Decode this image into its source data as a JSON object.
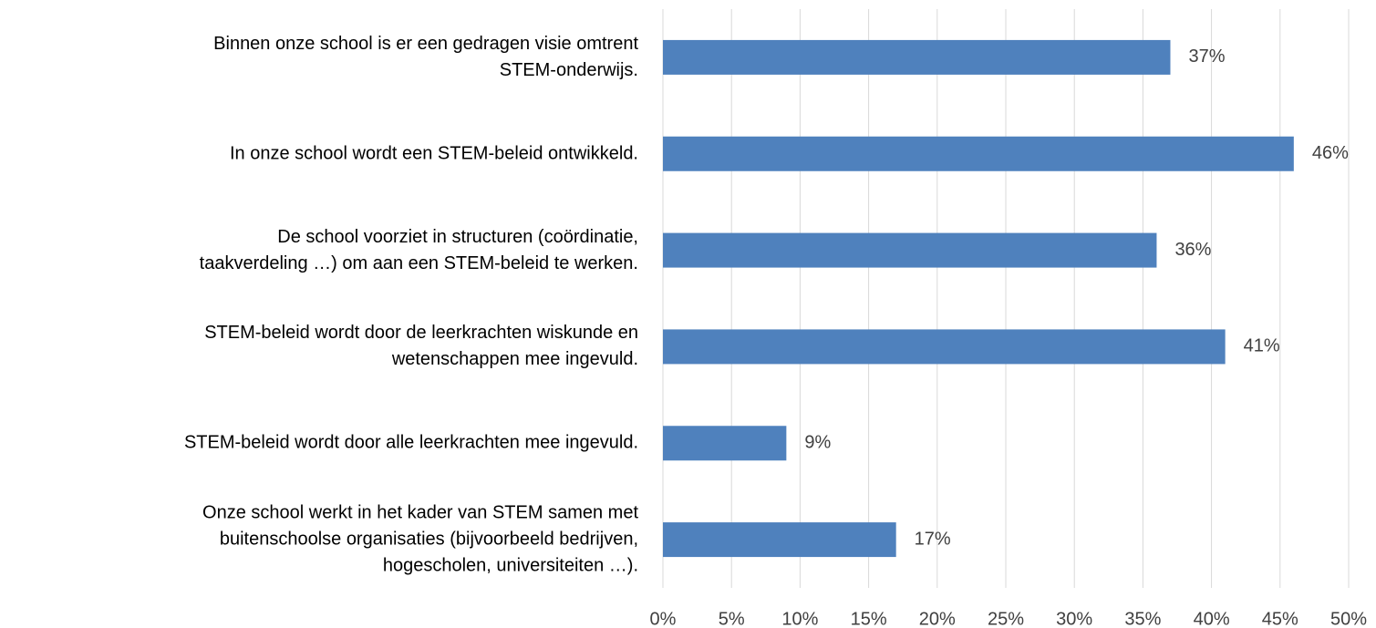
{
  "chart_data": {
    "type": "barh",
    "categories": [
      "Binnen onze school is er een gedragen visie omtrent\nSTEM-onderwijs.",
      "In onze school wordt een STEM-beleid ontwikkeld.",
      "De school voorziet in structuren (coördinatie,\ntaakverdeling …) om aan een STEM-beleid te werken.",
      "STEM-beleid wordt door de leerkrachten wiskunde en\nwetenschappen mee ingevuld.",
      "STEM-beleid wordt door alle leerkrachten mee ingevuld.",
      "Onze school werkt in het kader van STEM samen met\nbuitenschoolse organisaties (bijvoorbeeld bedrijven,\nhogescholen, universiteiten …)."
    ],
    "values": [
      37,
      46,
      36,
      41,
      9,
      17
    ],
    "value_labels": [
      "37%",
      "46%",
      "36%",
      "41%",
      "9%",
      "17%"
    ],
    "color": "#4f81bd",
    "xlim": [
      0,
      50
    ],
    "xticks": [
      {
        "value": 0,
        "label": "0%"
      },
      {
        "value": 5,
        "label": "5%"
      },
      {
        "value": 10,
        "label": "10%"
      },
      {
        "value": 15,
        "label": "15%"
      },
      {
        "value": 20,
        "label": "20%"
      },
      {
        "value": 25,
        "label": "25%"
      },
      {
        "value": 30,
        "label": "30%"
      },
      {
        "value": 35,
        "label": "35%"
      },
      {
        "value": 40,
        "label": "40%"
      },
      {
        "value": 45,
        "label": "45%"
      },
      {
        "value": 50,
        "label": "50%"
      }
    ],
    "grid": true
  }
}
